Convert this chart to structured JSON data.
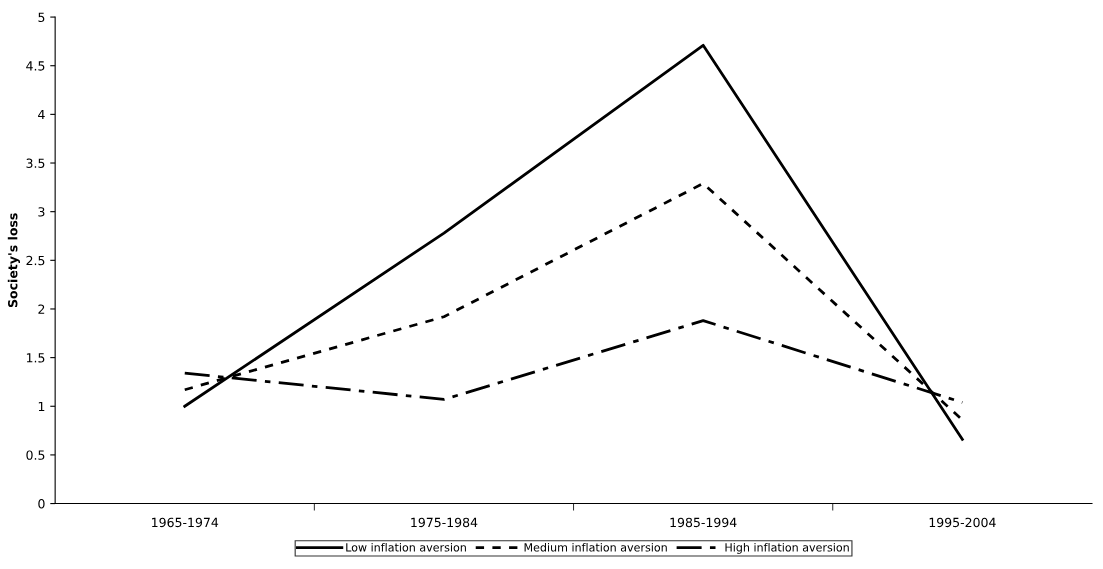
{
  "chart_data": {
    "type": "line",
    "ylabel": "Society's loss",
    "categories": [
      "1965-1974",
      "1975-1984",
      "1985-1994",
      "1995-2004"
    ],
    "series": [
      {
        "name": "Low inflation aversion",
        "color": "#000000",
        "line_style": "solid",
        "values": [
          1.0,
          2.78,
          4.71,
          0.66
        ]
      },
      {
        "name": "Medium inflation aversion",
        "color": "#000000",
        "line_style": "dotted",
        "values": [
          1.17,
          1.92,
          3.29,
          0.86
        ]
      },
      {
        "name": "High inflation aversion",
        "color": "#000000",
        "line_style": "dashdot",
        "values": [
          1.34,
          1.07,
          1.88,
          1.04
        ]
      }
    ],
    "ylim": [
      0,
      5
    ],
    "yticks": [
      0,
      0.5,
      1,
      1.5,
      2,
      2.5,
      3,
      3.5,
      4,
      4.5,
      5
    ],
    "grid": false,
    "legend": "bottom",
    "marker": "none"
  }
}
